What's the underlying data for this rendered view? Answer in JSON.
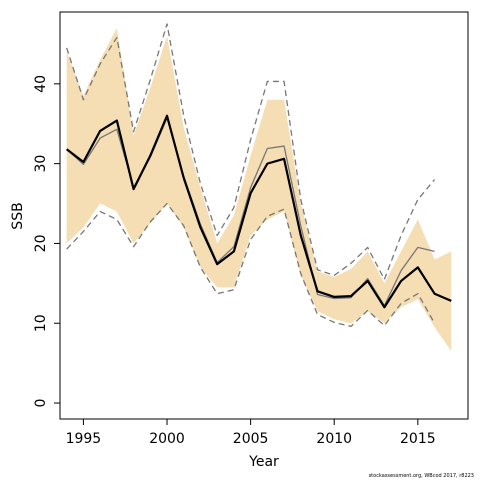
{
  "credit": "stockassessment.org, WBcod 2017, r8223",
  "chart_data": {
    "type": "line",
    "xlabel": "Year",
    "ylabel": "SSB",
    "xlim": [
      1993.6,
      2018.0
    ],
    "ylim": [
      -2,
      49
    ],
    "x_ticks": [
      1995,
      2000,
      2005,
      2010,
      2015
    ],
    "y_ticks": [
      0,
      10,
      20,
      30,
      40
    ],
    "grid": false,
    "colors": {
      "band": "#f5deb3",
      "current": "#000000",
      "previous": "#777777"
    },
    "confidence_band": {
      "x": [
        1994,
        1995,
        1996,
        1997,
        1998,
        1999,
        2000,
        2001,
        2002,
        2003,
        2004,
        2005,
        2006,
        2007,
        2008,
        2009,
        2010,
        2011,
        2012,
        2013,
        2014,
        2015,
        2016,
        2017
      ],
      "upper": [
        44.0,
        38.5,
        43.0,
        47.0,
        33.5,
        39.5,
        46.0,
        34.5,
        27.0,
        20.0,
        23.5,
        31.0,
        38.0,
        38.0,
        25.0,
        16.5,
        15.8,
        16.8,
        19.0,
        15.0,
        19.0,
        23.0,
        18.0,
        19.0
      ],
      "lower": [
        20.0,
        22.0,
        25.0,
        24.0,
        20.0,
        22.5,
        25.0,
        22.0,
        17.0,
        14.5,
        14.5,
        21.0,
        23.0,
        24.0,
        16.0,
        11.5,
        10.5,
        10.0,
        11.5,
        10.0,
        12.0,
        13.0,
        9.5,
        6.5
      ]
    },
    "series": [
      {
        "style": "solid-black",
        "x": [
          1994,
          1995,
          1996,
          1997,
          1998,
          1999,
          2000,
          2001,
          2002,
          2003,
          2004,
          2005,
          2006,
          2007,
          2008,
          2009,
          2010,
          2011,
          2012,
          2013,
          2014,
          2015,
          2016,
          2017
        ],
        "values": [
          31.8,
          30.2,
          34.1,
          35.4,
          26.8,
          31.0,
          36.0,
          28.2,
          22.0,
          17.4,
          19.0,
          26.3,
          30.0,
          30.6,
          21.0,
          14.0,
          13.3,
          13.4,
          15.3,
          12.0,
          15.3,
          17.0,
          13.7,
          12.8
        ]
      },
      {
        "style": "solid-grey",
        "x": [
          1994,
          1995,
          1996,
          1997,
          1998,
          1999,
          2000,
          2001,
          2002,
          2003,
          2004,
          2005,
          2006,
          2007,
          2008,
          2009,
          2010,
          2011,
          2012,
          2013,
          2014,
          2015,
          2016
        ],
        "values": [
          31.8,
          29.9,
          33.2,
          34.3,
          27.0,
          30.8,
          35.7,
          28.4,
          22.4,
          17.6,
          19.6,
          27.0,
          31.9,
          32.2,
          22.2,
          13.6,
          13.1,
          13.2,
          15.6,
          12.2,
          16.6,
          19.5,
          19.0
        ]
      },
      {
        "style": "dashed-grey-upper",
        "x": [
          1994,
          1995,
          1996,
          1997,
          1998,
          1999,
          2000,
          2001,
          2002,
          2003,
          2004,
          2005,
          2006,
          2007,
          2008,
          2009,
          2010,
          2011,
          2012,
          2013,
          2014,
          2015,
          2016
        ],
        "values": [
          44.5,
          38.0,
          42.5,
          45.8,
          34.0,
          40.5,
          47.5,
          36.0,
          27.5,
          21.0,
          24.5,
          33.0,
          40.3,
          40.3,
          25.5,
          16.7,
          16.0,
          17.5,
          19.5,
          15.5,
          21.0,
          25.5,
          28.0
        ]
      },
      {
        "style": "dashed-grey-lower",
        "x": [
          1994,
          1995,
          1996,
          1997,
          1998,
          1999,
          2000,
          2001,
          2002,
          2003,
          2004,
          2005,
          2006,
          2007,
          2008,
          2009,
          2010,
          2011,
          2012,
          2013,
          2014,
          2015,
          2016
        ],
        "values": [
          19.3,
          21.5,
          24.0,
          23.0,
          19.6,
          22.7,
          25.0,
          22.2,
          17.0,
          13.7,
          14.2,
          20.5,
          23.4,
          24.3,
          16.2,
          11.1,
          10.1,
          9.6,
          11.6,
          9.7,
          12.5,
          13.7,
          10.0
        ]
      }
    ]
  }
}
